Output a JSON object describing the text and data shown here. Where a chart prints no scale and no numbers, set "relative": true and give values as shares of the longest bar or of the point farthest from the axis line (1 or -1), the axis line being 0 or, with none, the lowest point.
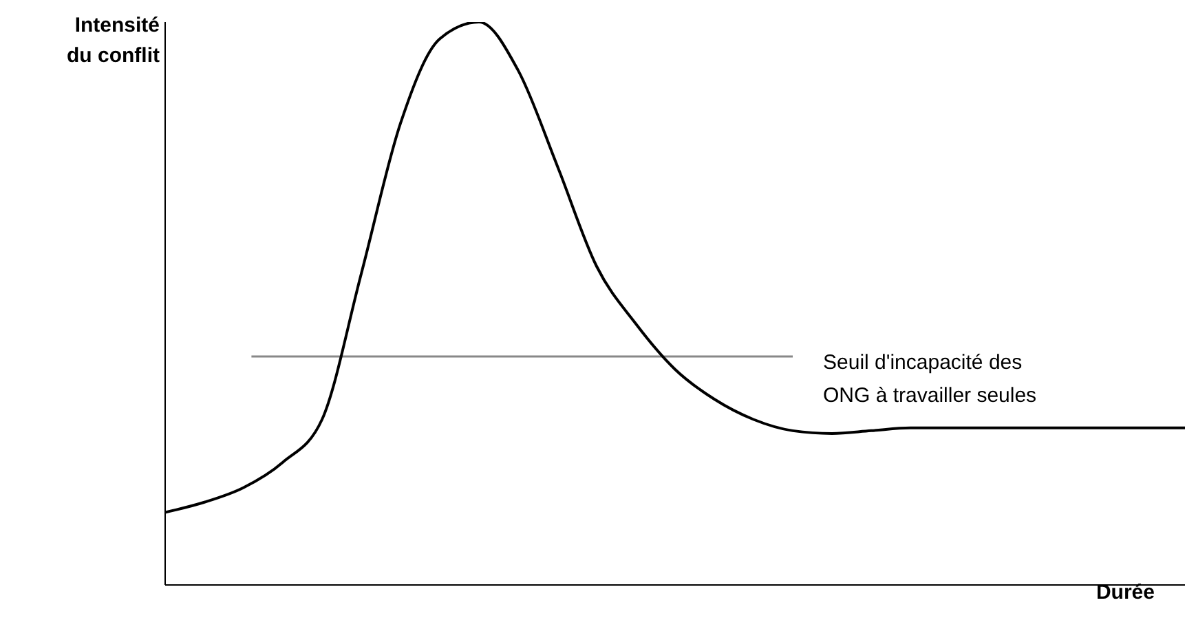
{
  "chart_data": {
    "type": "line",
    "relative": true,
    "xlabel": "Durée",
    "ylabel": "Intensité du conflit",
    "categories": [
      null,
      null,
      null,
      null,
      null,
      null,
      null,
      null,
      null,
      null,
      null,
      null,
      null,
      null,
      null,
      null,
      null,
      null,
      null,
      null,
      null,
      null,
      null,
      null,
      null,
      null,
      null
    ],
    "series": [
      {
        "color": "#000000",
        "values": [
          0.129,
          0.147,
          0.173,
          0.218,
          0.294,
          0.553,
          0.82,
          0.97,
          1.0,
          0.914,
          0.744,
          0.566,
          0.464,
          0.383,
          0.33,
          0.294,
          0.274,
          0.269,
          0.274,
          0.279,
          0.279,
          0.279,
          0.279,
          0.279,
          0.279,
          0.279,
          0.279
        ]
      }
    ],
    "ref_lines": [
      {
        "axis": "y",
        "value": 0.406,
        "label": "Seuil d'incapacité des ONG à travailler seules",
        "color": "#888888"
      }
    ],
    "marker": "none",
    "line_style": "solid",
    "grid": false
  }
}
